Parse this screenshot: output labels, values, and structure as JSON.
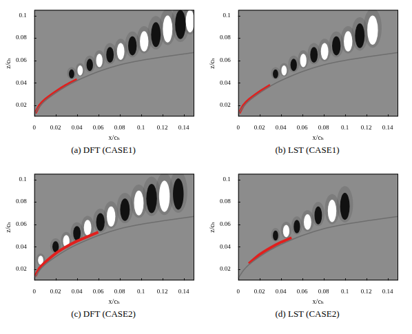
{
  "chart_data": [
    {
      "type": "scatter",
      "title": "(a) DFT (CASE1)",
      "x_label": "x/cₕ",
      "y_label": "z/cₕ",
      "xlim": [
        0,
        0.15
      ],
      "ylim": [
        0.01,
        0.105
      ],
      "xticks": [
        0,
        0.02,
        0.04,
        0.06,
        0.08,
        0.1,
        0.12,
        0.14
      ],
      "yticks": [
        0.02,
        0.04,
        0.06,
        0.08,
        0.1
      ],
      "grid": false,
      "series": [
        {
          "type": "line",
          "color": "#6e6e6e",
          "x": [
            0,
            0.005,
            0.01,
            0.02,
            0.03,
            0.04,
            0.06,
            0.08,
            0.1,
            0.12,
            0.15
          ],
          "values": [
            0.012,
            0.019,
            0.024,
            0.031,
            0.037,
            0.042,
            0.05,
            0.056,
            0.06,
            0.063,
            0.067
          ]
        },
        {
          "type": "line",
          "color": "#e0201e",
          "x": [
            0.001,
            0.005,
            0.01,
            0.02,
            0.03,
            0.04
          ],
          "values": [
            0.013,
            0.02,
            0.025,
            0.032,
            0.038,
            0.043
          ]
        }
      ],
      "blobs": {
        "x": [
          0.035,
          0.043,
          0.052,
          0.061,
          0.071,
          0.081,
          0.092,
          0.103,
          0.114,
          0.125,
          0.137,
          0.146
        ],
        "z": [
          0.048,
          0.051,
          0.056,
          0.06,
          0.065,
          0.068,
          0.073,
          0.077,
          0.083,
          0.088,
          0.092,
          0.095
        ],
        "width": [
          0.005,
          0.005,
          0.006,
          0.006,
          0.007,
          0.007,
          0.008,
          0.008,
          0.009,
          0.009,
          0.01,
          0.008
        ],
        "height": [
          0.008,
          0.009,
          0.011,
          0.012,
          0.014,
          0.015,
          0.017,
          0.018,
          0.022,
          0.024,
          0.026,
          0.02
        ],
        "sign": [
          -1,
          1,
          -1,
          1,
          -1,
          1,
          -1,
          1,
          -1,
          1,
          -1,
          1
        ]
      }
    },
    {
      "type": "scatter",
      "title": "(b) LST (CASE1)",
      "x_label": "x/cₕ",
      "y_label": "z/cₕ",
      "xlim": [
        0,
        0.15
      ],
      "ylim": [
        0.01,
        0.105
      ],
      "xticks": [
        0,
        0.02,
        0.04,
        0.06,
        0.08,
        0.1,
        0.12,
        0.14
      ],
      "yticks": [
        0.02,
        0.04,
        0.06,
        0.08,
        0.1
      ],
      "grid": false,
      "series": [
        {
          "type": "line",
          "color": "#6e6e6e",
          "x": [
            0,
            0.005,
            0.01,
            0.02,
            0.03,
            0.04,
            0.06,
            0.08,
            0.1,
            0.12,
            0.15
          ],
          "values": [
            0.012,
            0.019,
            0.024,
            0.031,
            0.037,
            0.042,
            0.05,
            0.056,
            0.06,
            0.063,
            0.067
          ]
        },
        {
          "type": "line",
          "color": "#e0201e",
          "x": [
            0.001,
            0.005,
            0.01,
            0.02,
            0.03
          ],
          "values": [
            0.013,
            0.02,
            0.025,
            0.032,
            0.038
          ]
        }
      ],
      "blobs": {
        "x": [
          0.035,
          0.043,
          0.052,
          0.061,
          0.071,
          0.081,
          0.092,
          0.103,
          0.114,
          0.126
        ],
        "z": [
          0.048,
          0.051,
          0.056,
          0.06,
          0.065,
          0.068,
          0.073,
          0.077,
          0.082,
          0.087
        ],
        "width": [
          0.005,
          0.005,
          0.006,
          0.006,
          0.007,
          0.007,
          0.008,
          0.008,
          0.009,
          0.01
        ],
        "height": [
          0.008,
          0.009,
          0.011,
          0.012,
          0.014,
          0.015,
          0.017,
          0.018,
          0.022,
          0.026
        ],
        "sign": [
          -1,
          1,
          -1,
          1,
          -1,
          1,
          -1,
          1,
          -1,
          1
        ]
      }
    },
    {
      "type": "scatter",
      "title": "(c) DFT (CASE2)",
      "x_label": "x/cₕ",
      "y_label": "z/cₕ",
      "xlim": [
        0,
        0.15
      ],
      "ylim": [
        0.01,
        0.105
      ],
      "xticks": [
        0,
        0.02,
        0.04,
        0.06,
        0.08,
        0.1,
        0.12,
        0.14
      ],
      "yticks": [
        0.02,
        0.04,
        0.06,
        0.08,
        0.1
      ],
      "grid": false,
      "series": [
        {
          "type": "line",
          "color": "#6e6e6e",
          "x": [
            0,
            0.005,
            0.01,
            0.02,
            0.03,
            0.04,
            0.06,
            0.08,
            0.1,
            0.12,
            0.15
          ],
          "values": [
            0.012,
            0.019,
            0.024,
            0.031,
            0.037,
            0.042,
            0.05,
            0.056,
            0.06,
            0.063,
            0.067
          ]
        },
        {
          "type": "line",
          "color": "#e0201e",
          "x": [
            0.001,
            0.005,
            0.01,
            0.02,
            0.03,
            0.04,
            0.05,
            0.06
          ],
          "values": [
            0.014,
            0.021,
            0.026,
            0.034,
            0.04,
            0.045,
            0.049,
            0.053
          ]
        }
      ],
      "blobs": {
        "x": [
          0.006,
          0.02,
          0.03,
          0.04,
          0.05,
          0.062,
          0.072,
          0.085,
          0.098,
          0.11,
          0.122,
          0.135
        ],
        "z": [
          0.028,
          0.04,
          0.045,
          0.052,
          0.057,
          0.062,
          0.067,
          0.073,
          0.079,
          0.083,
          0.085,
          0.087
        ],
        "width": [
          0.005,
          0.006,
          0.006,
          0.007,
          0.007,
          0.008,
          0.008,
          0.009,
          0.009,
          0.01,
          0.01,
          0.01
        ],
        "height": [
          0.008,
          0.01,
          0.011,
          0.013,
          0.014,
          0.016,
          0.018,
          0.02,
          0.022,
          0.026,
          0.028,
          0.028
        ],
        "sign": [
          1,
          -1,
          1,
          -1,
          1,
          -1,
          1,
          -1,
          1,
          -1,
          1,
          -1
        ]
      }
    },
    {
      "type": "scatter",
      "title": "(d) LST (CASE2)",
      "x_label": "x/cₕ",
      "y_label": "z/cₕ",
      "xlim": [
        0,
        0.15
      ],
      "ylim": [
        0.01,
        0.105
      ],
      "xticks": [
        0,
        0.02,
        0.04,
        0.06,
        0.08,
        0.1,
        0.12,
        0.14
      ],
      "yticks": [
        0.02,
        0.04,
        0.06,
        0.08,
        0.1
      ],
      "grid": false,
      "series": [
        {
          "type": "line",
          "color": "#6e6e6e",
          "x": [
            0,
            0.005,
            0.01,
            0.02,
            0.03,
            0.04,
            0.06,
            0.08,
            0.1,
            0.12,
            0.15
          ],
          "values": [
            0.012,
            0.019,
            0.024,
            0.031,
            0.037,
            0.042,
            0.05,
            0.056,
            0.06,
            0.063,
            0.067
          ]
        },
        {
          "type": "line",
          "color": "#e0201e",
          "x": [
            0.01,
            0.02,
            0.03,
            0.04,
            0.05
          ],
          "values": [
            0.025,
            0.033,
            0.039,
            0.044,
            0.048
          ]
        }
      ],
      "blobs": {
        "x": [
          0.035,
          0.045,
          0.055,
          0.065,
          0.075,
          0.088,
          0.1
        ],
        "z": [
          0.05,
          0.054,
          0.058,
          0.062,
          0.068,
          0.072,
          0.076
        ],
        "width": [
          0.005,
          0.006,
          0.006,
          0.007,
          0.007,
          0.008,
          0.009
        ],
        "height": [
          0.009,
          0.011,
          0.012,
          0.014,
          0.016,
          0.02,
          0.024
        ],
        "sign": [
          -1,
          1,
          -1,
          1,
          -1,
          1,
          -1
        ]
      }
    }
  ]
}
